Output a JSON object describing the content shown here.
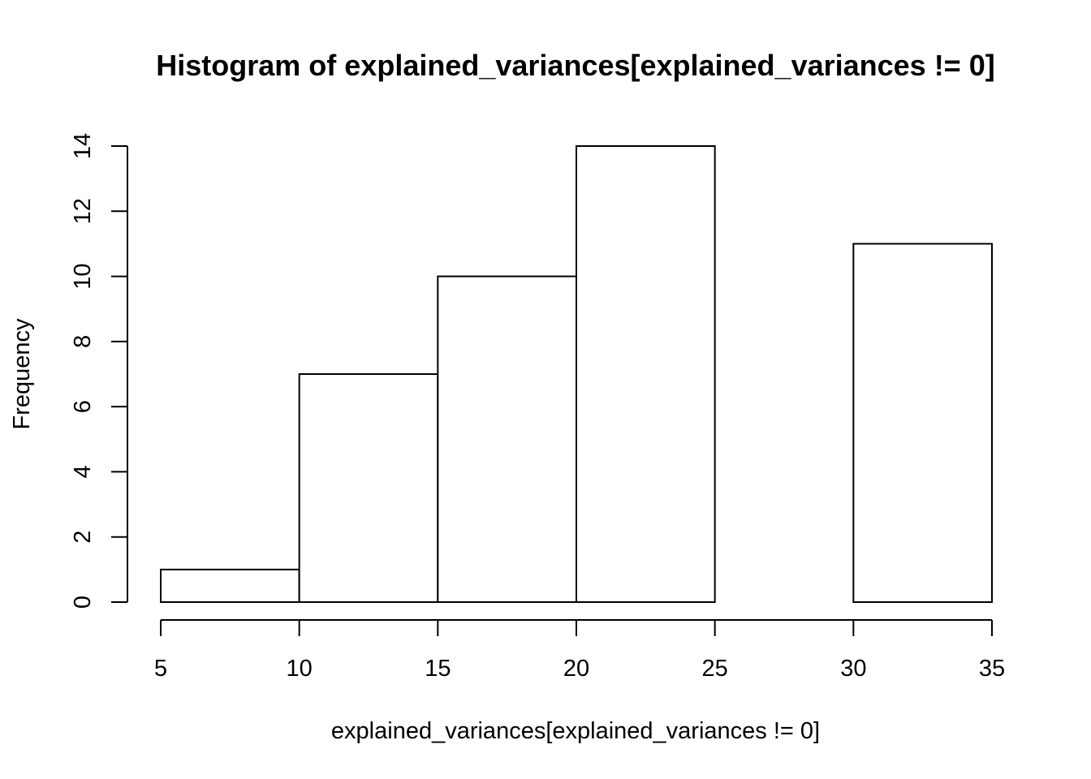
{
  "chart_data": {
    "type": "bar",
    "title": "Histogram of explained_variances[explained_variances != 0]",
    "xlabel": "explained_variances[explained_variances != 0]",
    "ylabel": "Frequency",
    "bins": [
      {
        "from": 5,
        "to": 10,
        "count": 1
      },
      {
        "from": 10,
        "to": 15,
        "count": 7
      },
      {
        "from": 15,
        "to": 20,
        "count": 10
      },
      {
        "from": 20,
        "to": 25,
        "count": 14
      },
      {
        "from": 25,
        "to": 30,
        "count": 0
      },
      {
        "from": 30,
        "to": 35,
        "count": 11
      }
    ],
    "xlim": [
      5,
      35
    ],
    "ylim": [
      0,
      14
    ],
    "x_ticks": [
      "5",
      "10",
      "15",
      "20",
      "25",
      "30",
      "35"
    ],
    "y_ticks": [
      "0",
      "2",
      "4",
      "6",
      "8",
      "10",
      "12",
      "14"
    ],
    "grid": false,
    "legend": "none"
  }
}
